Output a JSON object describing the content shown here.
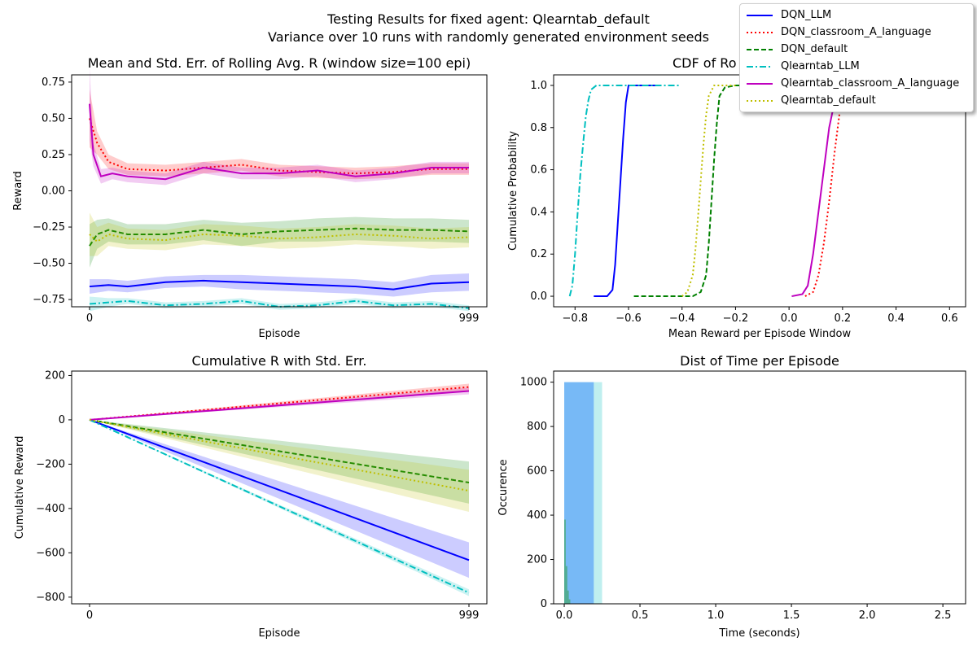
{
  "figure": {
    "title_line1": "Testing Results for fixed agent: Qlearntab_default",
    "title_line2": "Variance over 10 runs with randomly generated environment seeds"
  },
  "legend": [
    {
      "label": "DQN_LLM",
      "color": "#0000ff",
      "style": "solid"
    },
    {
      "label": "DQN_classroom_A_language",
      "color": "#ff0000",
      "style": "dotted"
    },
    {
      "label": "DQN_default",
      "color": "#008000",
      "style": "dashed"
    },
    {
      "label": "Qlearntab_LLM",
      "color": "#00bfbf",
      "style": "dashdot"
    },
    {
      "label": "Qlearntab_classroom_A_language",
      "color": "#bf00bf",
      "style": "solid"
    },
    {
      "label": "Qlearntab_default",
      "color": "#bfbf00",
      "style": "dotted"
    }
  ],
  "chart_data": [
    {
      "type": "line",
      "title": "Mean and Std. Err. of Rolling Avg. R (window size=100 epi)",
      "xlabel": "Episode",
      "ylabel": "Reward",
      "xlim": [
        0,
        999
      ],
      "xticks": [
        "0",
        "999"
      ],
      "ylim": [
        -0.8,
        0.8
      ],
      "yticks": [
        "0.75",
        "0.50",
        "0.25",
        "0.00",
        "−0.25",
        "−0.50",
        "−0.75"
      ],
      "series": [
        {
          "name": "DQN_LLM",
          "x": [
            0,
            50,
            100,
            200,
            300,
            400,
            500,
            600,
            700,
            800,
            900,
            999
          ],
          "y": [
            -0.66,
            -0.65,
            -0.66,
            -0.63,
            -0.62,
            -0.63,
            -0.64,
            -0.65,
            -0.66,
            -0.68,
            -0.64,
            -0.63
          ],
          "err": [
            0.05,
            0.04,
            0.04,
            0.04,
            0.04,
            0.05,
            0.05,
            0.05,
            0.05,
            0.05,
            0.06,
            0.06
          ]
        },
        {
          "name": "DQN_classroom_A_language",
          "x": [
            0,
            20,
            50,
            100,
            200,
            300,
            400,
            500,
            600,
            700,
            800,
            900,
            999
          ],
          "y": [
            0.5,
            0.33,
            0.2,
            0.15,
            0.14,
            0.16,
            0.18,
            0.14,
            0.13,
            0.12,
            0.13,
            0.15,
            0.15
          ],
          "err": [
            0.2,
            0.08,
            0.05,
            0.04,
            0.04,
            0.04,
            0.04,
            0.04,
            0.04,
            0.04,
            0.04,
            0.04,
            0.04
          ]
        },
        {
          "name": "DQN_default",
          "x": [
            0,
            20,
            50,
            100,
            200,
            300,
            400,
            500,
            600,
            700,
            800,
            900,
            999
          ],
          "y": [
            -0.38,
            -0.3,
            -0.27,
            -0.3,
            -0.3,
            -0.27,
            -0.3,
            -0.28,
            -0.27,
            -0.26,
            -0.27,
            -0.27,
            -0.28
          ],
          "err": [
            0.15,
            0.1,
            0.08,
            0.07,
            0.07,
            0.07,
            0.08,
            0.07,
            0.08,
            0.08,
            0.08,
            0.08,
            0.08
          ]
        },
        {
          "name": "Qlearntab_LLM",
          "x": [
            0,
            50,
            100,
            200,
            300,
            400,
            500,
            600,
            700,
            800,
            900,
            999
          ],
          "y": [
            -0.78,
            -0.77,
            -0.76,
            -0.79,
            -0.78,
            -0.76,
            -0.8,
            -0.79,
            -0.76,
            -0.79,
            -0.78,
            -0.81
          ],
          "err": [
            0.05,
            0.03,
            0.02,
            0.02,
            0.02,
            0.02,
            0.02,
            0.02,
            0.02,
            0.02,
            0.02,
            0.02
          ]
        },
        {
          "name": "Qlearntab_classroom_A_language",
          "x": [
            0,
            10,
            30,
            60,
            100,
            200,
            300,
            400,
            500,
            600,
            700,
            800,
            900,
            999
          ],
          "y": [
            0.6,
            0.25,
            0.1,
            0.12,
            0.1,
            0.08,
            0.16,
            0.12,
            0.12,
            0.14,
            0.1,
            0.12,
            0.16,
            0.16
          ],
          "err": [
            0.25,
            0.08,
            0.05,
            0.04,
            0.04,
            0.04,
            0.04,
            0.04,
            0.04,
            0.04,
            0.04,
            0.04,
            0.04,
            0.04
          ]
        },
        {
          "name": "Qlearntab_default",
          "x": [
            0,
            20,
            50,
            100,
            200,
            300,
            400,
            500,
            600,
            700,
            800,
            900,
            999
          ],
          "y": [
            -0.3,
            -0.35,
            -0.3,
            -0.33,
            -0.34,
            -0.3,
            -0.31,
            -0.33,
            -0.32,
            -0.3,
            -0.31,
            -0.33,
            -0.32
          ],
          "err": [
            0.15,
            0.1,
            0.08,
            0.07,
            0.07,
            0.07,
            0.07,
            0.07,
            0.07,
            0.07,
            0.07,
            0.07,
            0.07
          ]
        }
      ]
    },
    {
      "type": "line",
      "title": "CDF of Ro",
      "xlabel": "Mean Reward per Episode Window",
      "ylabel": "Cumulative Probability",
      "xlim": [
        -0.88,
        0.66
      ],
      "ylim": [
        -0.05,
        1.05
      ],
      "xticks": [
        -0.8,
        -0.6,
        -0.4,
        -0.2,
        0.0,
        0.2,
        0.4,
        0.6
      ],
      "xticklabels": [
        "−0.8",
        "−0.6",
        "−0.4",
        "−0.2",
        "0.0",
        "0.2",
        "0.4",
        "0.6"
      ],
      "yticks": [
        0.0,
        0.2,
        0.4,
        0.6,
        0.8,
        1.0
      ],
      "yticklabels": [
        "0.0",
        "0.2",
        "0.4",
        "0.6",
        "0.8",
        "1.0"
      ],
      "series": [
        {
          "name": "DQN_LLM",
          "x": [
            -0.73,
            -0.68,
            -0.66,
            -0.65,
            -0.64,
            -0.63,
            -0.62,
            -0.61,
            -0.6,
            -0.5
          ],
          "y": [
            0.0,
            0.0,
            0.03,
            0.15,
            0.35,
            0.55,
            0.75,
            0.92,
            1.0,
            1.0
          ]
        },
        {
          "name": "DQN_classroom_A_language",
          "x": [
            0.06,
            0.09,
            0.11,
            0.13,
            0.15,
            0.17,
            0.19,
            0.2,
            0.21,
            0.22
          ],
          "y": [
            0.0,
            0.02,
            0.1,
            0.25,
            0.45,
            0.68,
            0.88,
            0.95,
            0.99,
            1.0
          ]
        },
        {
          "name": "DQN_default",
          "x": [
            -0.58,
            -0.36,
            -0.33,
            -0.31,
            -0.3,
            -0.29,
            -0.28,
            -0.27,
            -0.26,
            -0.24,
            -0.2,
            -0.17
          ],
          "y": [
            0.0,
            0.0,
            0.02,
            0.1,
            0.25,
            0.45,
            0.65,
            0.82,
            0.95,
            0.99,
            1.0,
            1.0
          ]
        },
        {
          "name": "Qlearntab_LLM",
          "x": [
            -0.82,
            -0.81,
            -0.8,
            -0.79,
            -0.78,
            -0.77,
            -0.76,
            -0.75,
            -0.74,
            -0.72,
            -0.6,
            -0.41
          ],
          "y": [
            0.0,
            0.05,
            0.2,
            0.4,
            0.58,
            0.72,
            0.85,
            0.93,
            0.98,
            1.0,
            1.0,
            1.0
          ]
        },
        {
          "name": "Qlearntab_classroom_A_language",
          "x": [
            0.01,
            0.05,
            0.07,
            0.09,
            0.11,
            0.13,
            0.15,
            0.17,
            0.19
          ],
          "y": [
            0.0,
            0.01,
            0.05,
            0.2,
            0.4,
            0.6,
            0.8,
            0.92,
            1.0
          ]
        },
        {
          "name": "Qlearntab_default",
          "x": [
            -0.4,
            -0.38,
            -0.36,
            -0.35,
            -0.34,
            -0.33,
            -0.32,
            -0.31,
            -0.3,
            -0.28,
            -0.24,
            -0.2
          ],
          "y": [
            0.0,
            0.02,
            0.1,
            0.22,
            0.38,
            0.55,
            0.72,
            0.86,
            0.95,
            1.0,
            1.0,
            1.0
          ]
        }
      ]
    },
    {
      "type": "line",
      "title": "Cumulative R with Std. Err.",
      "xlabel": "Episode",
      "ylabel": "Cumulative Reward",
      "xlim": [
        0,
        999
      ],
      "xticks": [
        "0",
        "999"
      ],
      "ylim": [
        -830,
        220
      ],
      "yticks": [
        200,
        0,
        -200,
        -400,
        -600,
        -800
      ],
      "yticklabels": [
        "200",
        "0",
        "−200",
        "−400",
        "−600",
        "−800"
      ],
      "series": [
        {
          "name": "DQN_LLM",
          "x": [
            0,
            999
          ],
          "y": [
            0,
            -633
          ],
          "err_end": 80
        },
        {
          "name": "DQN_classroom_A_language",
          "x": [
            0,
            999
          ],
          "y": [
            0,
            148
          ],
          "err_end": 15
        },
        {
          "name": "DQN_default",
          "x": [
            0,
            999
          ],
          "y": [
            0,
            -283
          ],
          "err_end": 95
        },
        {
          "name": "Qlearntab_LLM",
          "x": [
            0,
            999
          ],
          "y": [
            0,
            -780
          ],
          "err_end": 15
        },
        {
          "name": "Qlearntab_classroom_A_language",
          "x": [
            0,
            999
          ],
          "y": [
            0,
            130
          ],
          "err_end": 15
        },
        {
          "name": "Qlearntab_default",
          "x": [
            0,
            999
          ],
          "y": [
            0,
            -320
          ],
          "err_end": 95
        }
      ]
    },
    {
      "type": "bar",
      "title": "Dist of Time per Episode",
      "xlabel": "Time (seconds)",
      "ylabel": "Occurence",
      "xlim": [
        -0.07,
        2.65
      ],
      "ylim": [
        0,
        1050
      ],
      "xticks": [
        0.0,
        0.5,
        1.0,
        1.5,
        2.0,
        2.5
      ],
      "xticklabels": [
        "0.0",
        "0.5",
        "1.0",
        "1.5",
        "2.0",
        "2.5"
      ],
      "yticks": [
        0,
        200,
        400,
        600,
        800,
        1000
      ],
      "yticklabels": [
        "0",
        "200",
        "400",
        "600",
        "800",
        "1000"
      ],
      "bars": [
        {
          "name": "DQN_LLM",
          "x0": 0.0,
          "x1": 0.25,
          "value": 1000,
          "color": "#00bfbf",
          "alpha": 0.25
        },
        {
          "name": "Qlearntab_LLM",
          "x0": 0.0,
          "x1": 0.195,
          "value": 1000,
          "color": "#1f77ff",
          "alpha": 0.45
        },
        {
          "name": "DQN_default",
          "x0": 0.0,
          "x1": 0.01,
          "value": 380,
          "color": "#2ca02c",
          "alpha": 0.5
        },
        {
          "name": "Qlearntab_default",
          "x0": 0.01,
          "x1": 0.02,
          "value": 170,
          "color": "#2ca02c",
          "alpha": 0.5
        },
        {
          "name": "DQN_classroom_A_language",
          "x0": 0.02,
          "x1": 0.03,
          "value": 60,
          "color": "#2ca02c",
          "alpha": 0.5
        },
        {
          "name": "Qlearntab_classroom_A_language",
          "x0": 0.03,
          "x1": 0.04,
          "value": 20,
          "color": "#2ca02c",
          "alpha": 0.5
        }
      ]
    }
  ]
}
